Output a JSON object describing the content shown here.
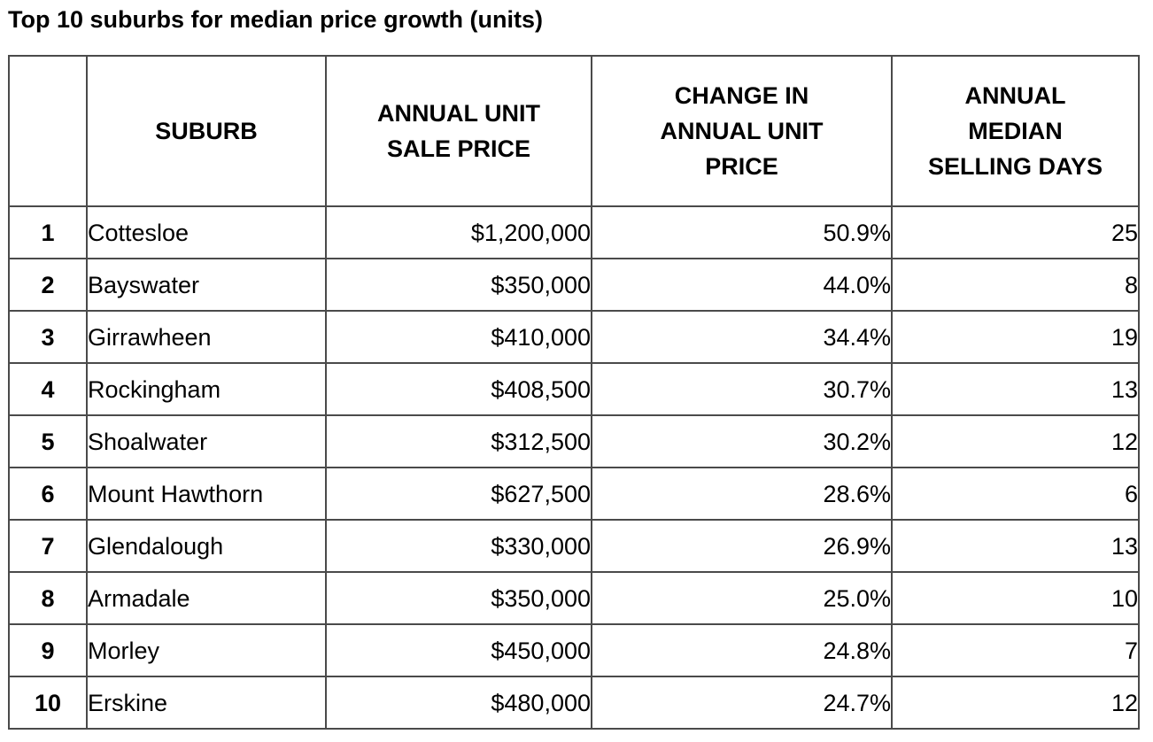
{
  "title": "Top 10 suburbs for median price growth (units)",
  "columns": {
    "rank": "",
    "suburb": "SUBURB",
    "price": [
      "ANNUAL UNIT",
      "SALE PRICE"
    ],
    "change": [
      "CHANGE IN",
      "ANNUAL UNIT",
      "PRICE"
    ],
    "days": [
      "ANNUAL",
      "MEDIAN",
      "SELLING DAYS"
    ]
  },
  "rows": [
    {
      "rank": "1",
      "suburb": "Cottesloe",
      "price": "$1,200,000",
      "change": "50.9%",
      "days": "25"
    },
    {
      "rank": "2",
      "suburb": "Bayswater",
      "price": "$350,000",
      "change": "44.0%",
      "days": "8"
    },
    {
      "rank": "3",
      "suburb": "Girrawheen",
      "price": "$410,000",
      "change": "34.4%",
      "days": "19"
    },
    {
      "rank": "4",
      "suburb": "Rockingham",
      "price": "$408,500",
      "change": "30.7%",
      "days": "13"
    },
    {
      "rank": "5",
      "suburb": "Shoalwater",
      "price": "$312,500",
      "change": "30.2%",
      "days": "12"
    },
    {
      "rank": "6",
      "suburb": "Mount Hawthorn",
      "price": "$627,500",
      "change": "28.6%",
      "days": "6"
    },
    {
      "rank": "7",
      "suburb": "Glendalough",
      "price": "$330,000",
      "change": "26.9%",
      "days": "13"
    },
    {
      "rank": "8",
      "suburb": "Armadale",
      "price": "$350,000",
      "change": "25.0%",
      "days": "10"
    },
    {
      "rank": "9",
      "suburb": "Morley",
      "price": "$450,000",
      "change": "24.8%",
      "days": "7"
    },
    {
      "rank": "10",
      "suburb": "Erskine",
      "price": "$480,000",
      "change": "24.7%",
      "days": "12"
    }
  ]
}
